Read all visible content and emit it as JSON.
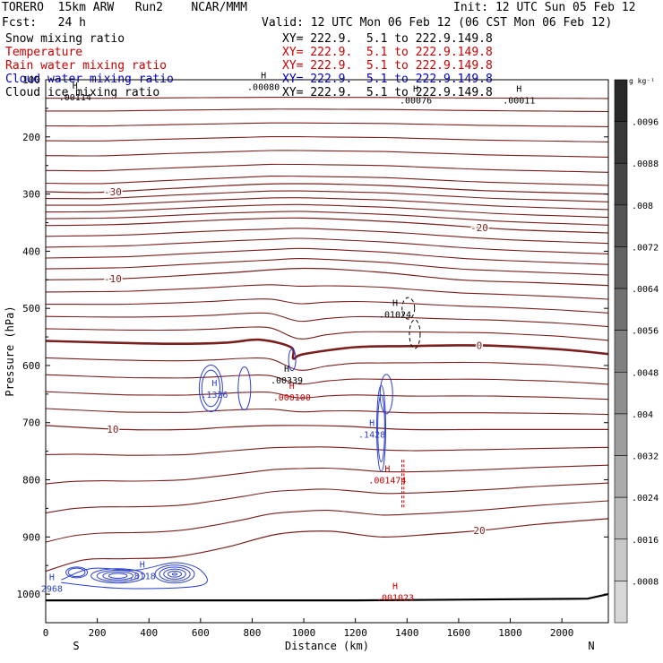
{
  "header": {
    "model": "TORERO  15km ARW   Run2    NCAR/MMM",
    "init": "Init: 12 UTC Sun 05 Feb 12",
    "fcst": "Fcst:   24 h",
    "valid": "Valid: 12 UTC Mon 06 Feb 12 (06 CST Mon 06 Feb 12)"
  },
  "fields": [
    {
      "name": "Snow mixing ratio",
      "range": "XY= 222.9.  5.1 to 222.9.149.8",
      "color": "#000000"
    },
    {
      "name": "Temperature",
      "range": "XY= 222.9.  5.1 to 222.9.149.8",
      "color": "#cc0000"
    },
    {
      "name": "Rain water mixing ratio",
      "range": "XY= 222.9.  5.1 to 222.9.149.8",
      "color": "#cc0000"
    },
    {
      "name": "Cloud water mixing ratio",
      "range": "XY= 222.9.  5.1 to 222.9.149.8",
      "color": "#0000cc"
    },
    {
      "name": "Cloud ice mixing ratio",
      "range": "XY= 222.9.  5.1 to 222.9.149.8",
      "color": "#000000"
    }
  ],
  "chart_data": {
    "type": "cross-section contour",
    "xlabel": "Distance (km)",
    "ylabel": "Pressure (hPa)",
    "xlim": [
      0,
      2180
    ],
    "ylim": [
      1050,
      100
    ],
    "x_ticks": [
      "0",
      "200",
      "400",
      "600",
      "800",
      "1000",
      "1200",
      "1400",
      "1600",
      "1800",
      "2000"
    ],
    "x_tick_values": [
      0,
      200,
      400,
      600,
      800,
      1000,
      1200,
      1400,
      1600,
      1800,
      2000
    ],
    "y_ticks": [
      "100",
      "200",
      "300",
      "400",
      "500",
      "600",
      "700",
      "800",
      "900",
      "1000"
    ],
    "y_tick_values": [
      100,
      200,
      300,
      400,
      500,
      600,
      700,
      800,
      900,
      1000
    ],
    "ends": {
      "left": "S",
      "right": "N"
    },
    "colorbar": {
      "units": "g kg⁻¹",
      "labels": [
        ".0096",
        ".0088",
        ".008",
        ".0072",
        ".0064",
        ".0056",
        ".0048",
        ".004",
        ".0032",
        ".0024",
        ".0016",
        ".0008"
      ],
      "values": [
        0.0096,
        0.0088,
        0.008,
        0.0072,
        0.0064,
        0.0056,
        0.0048,
        0.004,
        0.0032,
        0.0024,
        0.0016,
        0.0008
      ]
    },
    "temperature_contours": [
      {
        "label": "-30",
        "points": [
          [
            0,
            296
          ],
          [
            200,
            297
          ],
          [
            500,
            290
          ],
          [
            900,
            282
          ],
          [
            1300,
            285
          ],
          [
            1700,
            294
          ],
          [
            2180,
            300
          ]
        ]
      },
      {
        "label": "-20",
        "points": [
          [
            0,
            355
          ],
          [
            300,
            353
          ],
          [
            700,
            345
          ],
          [
            1000,
            342
          ],
          [
            1400,
            350
          ],
          [
            1800,
            362
          ],
          [
            2180,
            368
          ]
        ]
      },
      {
        "label": "-10",
        "points": [
          [
            0,
            450
          ],
          [
            300,
            448
          ],
          [
            700,
            438
          ],
          [
            1000,
            430
          ],
          [
            1300,
            437
          ],
          [
            1600,
            450
          ],
          [
            1900,
            455
          ],
          [
            2180,
            460
          ]
        ]
      },
      {
        "label": "0",
        "bold": true,
        "points": [
          [
            0,
            557
          ],
          [
            250,
            560
          ],
          [
            500,
            562
          ],
          [
            700,
            560
          ],
          [
            830,
            555
          ],
          [
            950,
            568
          ],
          [
            960,
            588
          ],
          [
            1000,
            580
          ],
          [
            1200,
            568
          ],
          [
            1400,
            566
          ],
          [
            1700,
            565
          ],
          [
            2000,
            572
          ],
          [
            2180,
            580
          ]
        ]
      },
      {
        "label": "10",
        "points": [
          [
            0,
            705
          ],
          [
            300,
            712
          ],
          [
            550,
            712
          ],
          [
            700,
            708
          ],
          [
            900,
            705
          ],
          [
            1150,
            706
          ],
          [
            1400,
            712
          ],
          [
            1700,
            712
          ],
          [
            2000,
            712
          ],
          [
            2180,
            712
          ]
        ]
      },
      {
        "label": "20",
        "points": [
          [
            0,
            960
          ],
          [
            150,
            940
          ],
          [
            300,
            938
          ],
          [
            500,
            935
          ],
          [
            700,
            918
          ],
          [
            900,
            895
          ],
          [
            1100,
            890
          ],
          [
            1300,
            900
          ],
          [
            1500,
            895
          ],
          [
            1700,
            888
          ],
          [
            1900,
            878
          ],
          [
            2180,
            868
          ]
        ]
      }
    ],
    "cloud_water_maxima": [
      {
        "label": ".1326",
        "distance_km": 640,
        "pressure_hPa": 650
      },
      {
        "label": ".1428",
        "distance_km": 1250,
        "pressure_hPa": 720
      },
      {
        "label": ".8118",
        "distance_km": 360,
        "pressure_hPa": 968
      },
      {
        "label": "2968",
        "distance_km": 10,
        "pressure_hPa": 990
      }
    ],
    "rain_water_maxima": [
      {
        "label": ".000100",
        "distance_km": 940,
        "pressure_hPa": 655
      },
      {
        "label": ".001474",
        "distance_km": 1310,
        "pressure_hPa": 800
      },
      {
        "label": ".001023",
        "distance_km": 1340,
        "pressure_hPa": 1005
      }
    ],
    "snow_maxima": [
      {
        "label": ".01024",
        "distance_km": 1340,
        "pressure_hPa": 510
      },
      {
        "label": ".00080",
        "distance_km": 830,
        "pressure_hPa": 112
      },
      {
        "label": ".00076",
        "distance_km": 1420,
        "pressure_hPa": 135
      },
      {
        "label": ".00011",
        "distance_km": 1820,
        "pressure_hPa": 135
      },
      {
        "label": ".00114",
        "distance_km": 100,
        "pressure_hPa": 130
      },
      {
        "label": ".00339",
        "distance_km": 920,
        "pressure_hPa": 625
      }
    ],
    "max_marker": "H"
  }
}
